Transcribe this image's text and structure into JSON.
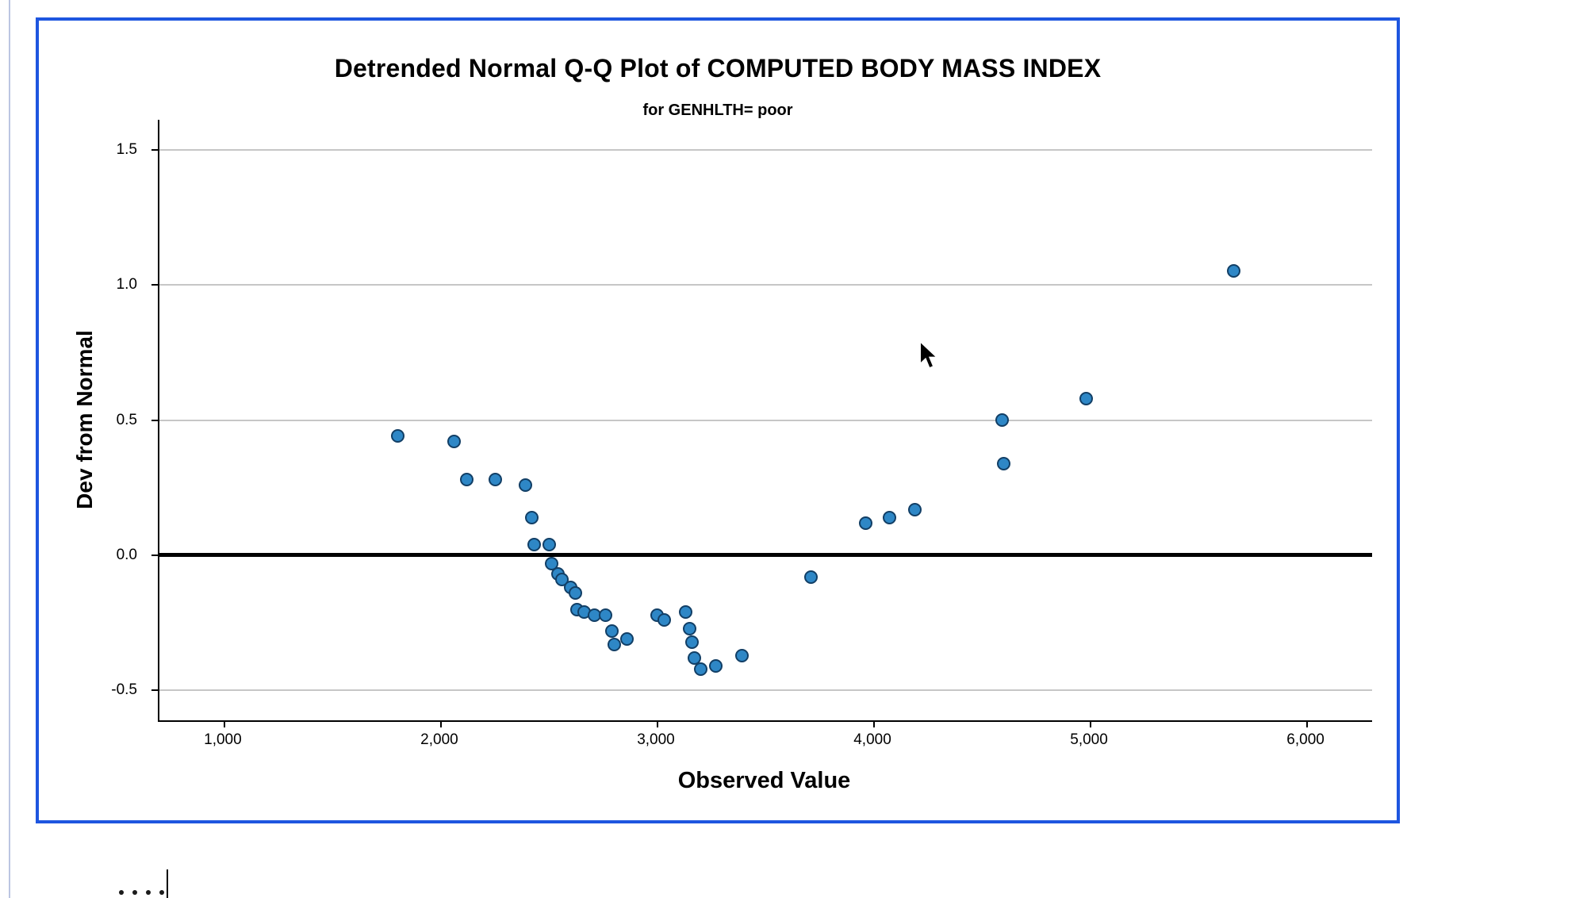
{
  "app": {
    "background": "#ffffff",
    "pane_divider_color": "#bcc6e2"
  },
  "chart": {
    "selection_border_color": "#1e56e0",
    "point_fill": "#2e87c6",
    "point_stroke": "#123f66",
    "grid_color": "#c6c6c6",
    "axis_color": "#000000",
    "zero_line_color": "#000000"
  },
  "chart_data": {
    "type": "scatter",
    "title": "Detrended Normal Q-Q Plot of COMPUTED BODY MASS INDEX",
    "subtitle": "for GENHLTH= poor",
    "xlabel": "Observed Value",
    "ylabel": "Dev from Normal",
    "xlim": [
      700,
      6300
    ],
    "ylim": [
      -0.61,
      1.61
    ],
    "grid": true,
    "legend": false,
    "x_ticks": [
      1000,
      2000,
      3000,
      4000,
      5000,
      6000
    ],
    "x_tick_labels": [
      "1,000",
      "2,000",
      "3,000",
      "4,000",
      "5,000",
      "6,000"
    ],
    "y_ticks": [
      1.5,
      1.0,
      0.5,
      0.0,
      -0.5
    ],
    "y_tick_labels": [
      "1.5",
      "1.0",
      "0.5",
      "0.0",
      "-0.5"
    ],
    "zero_reference_line": 0.0,
    "points": [
      [
        1800,
        0.44
      ],
      [
        2060,
        0.42
      ],
      [
        2120,
        0.28
      ],
      [
        2250,
        0.28
      ],
      [
        2390,
        0.26
      ],
      [
        2420,
        0.14
      ],
      [
        2430,
        0.04
      ],
      [
        2500,
        0.04
      ],
      [
        2510,
        -0.03
      ],
      [
        2540,
        -0.07
      ],
      [
        2560,
        -0.09
      ],
      [
        2600,
        -0.12
      ],
      [
        2620,
        -0.14
      ],
      [
        2630,
        -0.2
      ],
      [
        2660,
        -0.21
      ],
      [
        2710,
        -0.22
      ],
      [
        2760,
        -0.22
      ],
      [
        2790,
        -0.28
      ],
      [
        2800,
        -0.33
      ],
      [
        2860,
        -0.31
      ],
      [
        3000,
        -0.22
      ],
      [
        3030,
        -0.24
      ],
      [
        3130,
        -0.21
      ],
      [
        3150,
        -0.27
      ],
      [
        3160,
        -0.32
      ],
      [
        3170,
        -0.38
      ],
      [
        3200,
        -0.42
      ],
      [
        3270,
        -0.41
      ],
      [
        3390,
        -0.37
      ],
      [
        3710,
        -0.08
      ],
      [
        3960,
        0.12
      ],
      [
        4070,
        0.14
      ],
      [
        4190,
        0.17
      ],
      [
        4590,
        0.5
      ],
      [
        4600,
        0.34
      ],
      [
        4980,
        0.58
      ],
      [
        5660,
        1.05
      ]
    ]
  },
  "next_chart_fragment": {
    "dot_count": 4
  }
}
